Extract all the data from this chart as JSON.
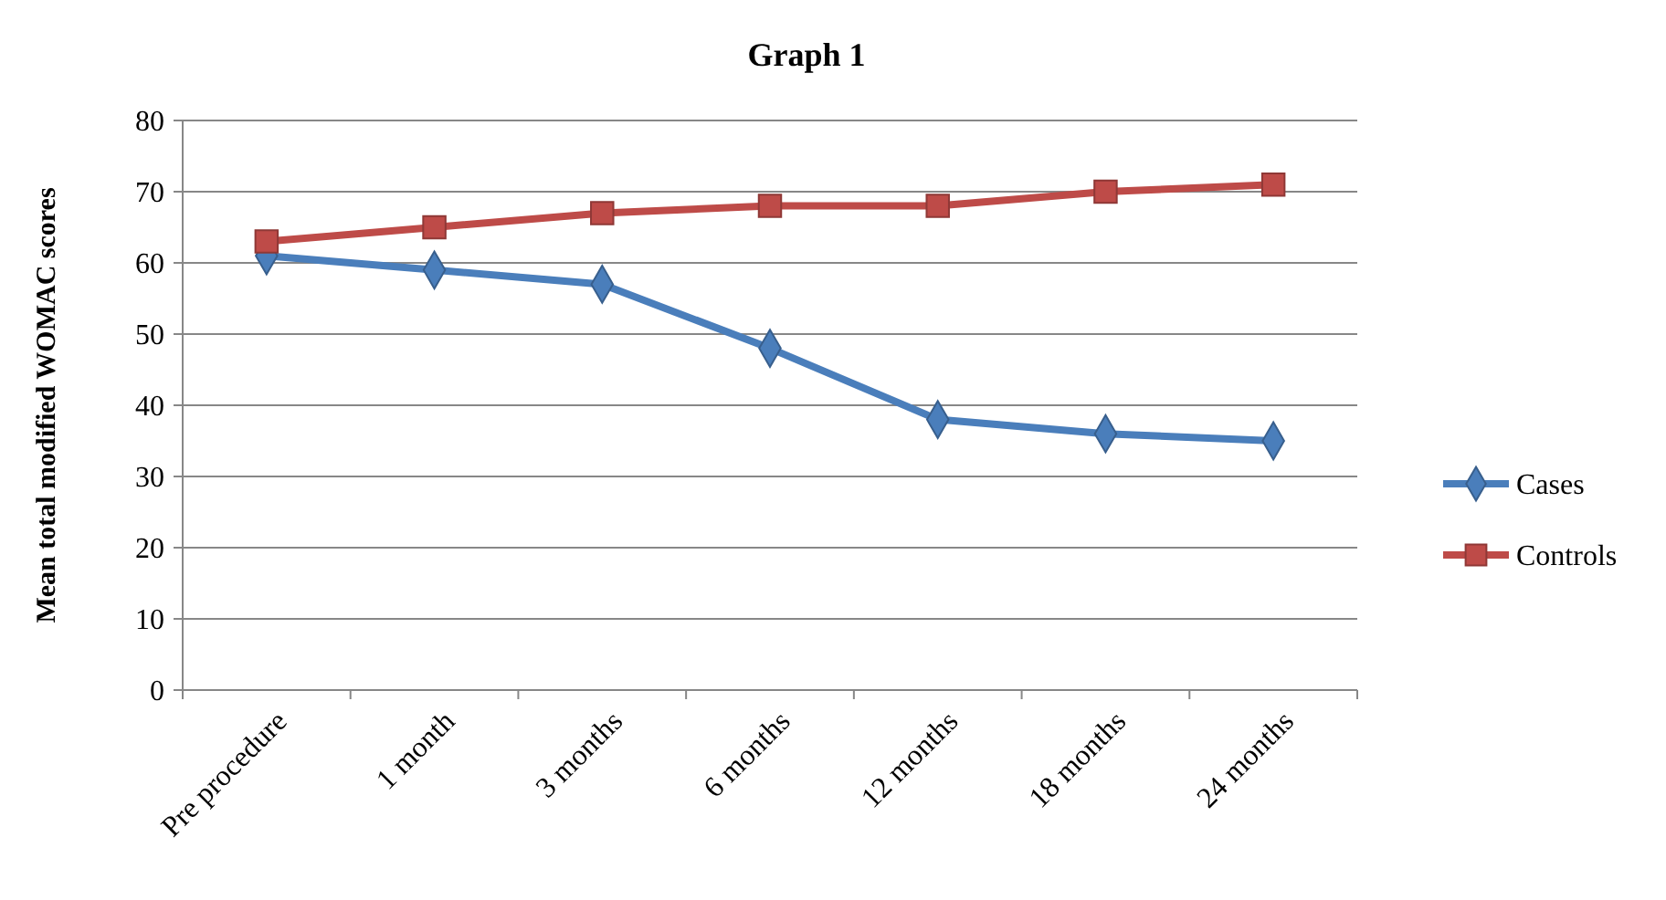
{
  "chart_data": {
    "type": "line",
    "title": "Graph 1",
    "ylabel": "Mean total modified WOMAC scores",
    "categories": [
      "Pre procedure",
      "1 month",
      "3 months",
      "6 months",
      "12 months",
      "18 months",
      "24 months"
    ],
    "series": [
      {
        "name": "Cases",
        "color": "#4a7ebb",
        "marker": "diamond",
        "values": [
          61,
          59,
          57,
          48,
          38,
          36,
          35
        ]
      },
      {
        "name": "Controls",
        "color": "#be4b48",
        "marker": "square",
        "values": [
          63,
          65,
          67,
          68,
          68,
          70,
          71
        ]
      }
    ],
    "ylim": [
      0,
      80
    ],
    "yticks": [
      0,
      10,
      20,
      30,
      40,
      50,
      60,
      70,
      80
    ],
    "grid": "y",
    "legend": "right"
  }
}
